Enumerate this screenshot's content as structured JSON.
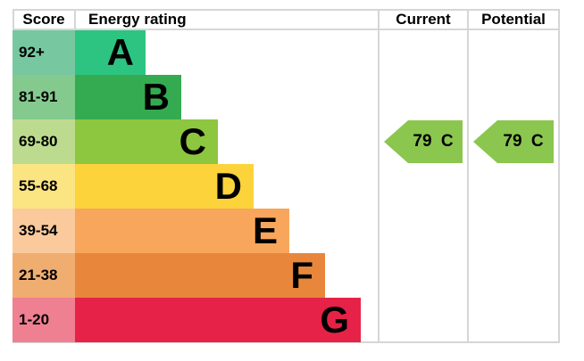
{
  "header": {
    "score": "Score",
    "energy_rating": "Energy rating",
    "current": "Current",
    "potential": "Potential"
  },
  "chart_data": {
    "type": "bar",
    "title": "Energy rating",
    "categories": [
      "A",
      "B",
      "C",
      "D",
      "E",
      "F",
      "G"
    ],
    "bands": [
      {
        "letter": "A",
        "score_range": "92+",
        "bar_color": "#2dc481",
        "score_bg": "#77c8a0"
      },
      {
        "letter": "B",
        "score_range": "81-91",
        "bar_color": "#34ab51",
        "score_bg": "#84ca8e"
      },
      {
        "letter": "C",
        "score_range": "69-80",
        "bar_color": "#8dc63f",
        "score_bg": "#bcdb8f"
      },
      {
        "letter": "D",
        "score_range": "55-68",
        "bar_color": "#fcd33b",
        "score_bg": "#fbe482"
      },
      {
        "letter": "E",
        "score_range": "39-54",
        "bar_color": "#f7a65b",
        "score_bg": "#faca9d"
      },
      {
        "letter": "F",
        "score_range": "21-38",
        "bar_color": "#e8873b",
        "score_bg": "#f0ad70"
      },
      {
        "letter": "G",
        "score_range": "1-20",
        "bar_color": "#e62249",
        "score_bg": "#ee8092"
      }
    ],
    "current": {
      "value": 79,
      "band": "C",
      "label": "79 C",
      "color": "#8bc64f"
    },
    "potential": {
      "value": 79,
      "band": "C",
      "label": "79 C",
      "color": "#8bc64f"
    },
    "colors": {
      "grid": "#d6d6d6",
      "text": "#000000",
      "background": "#ffffff"
    }
  }
}
